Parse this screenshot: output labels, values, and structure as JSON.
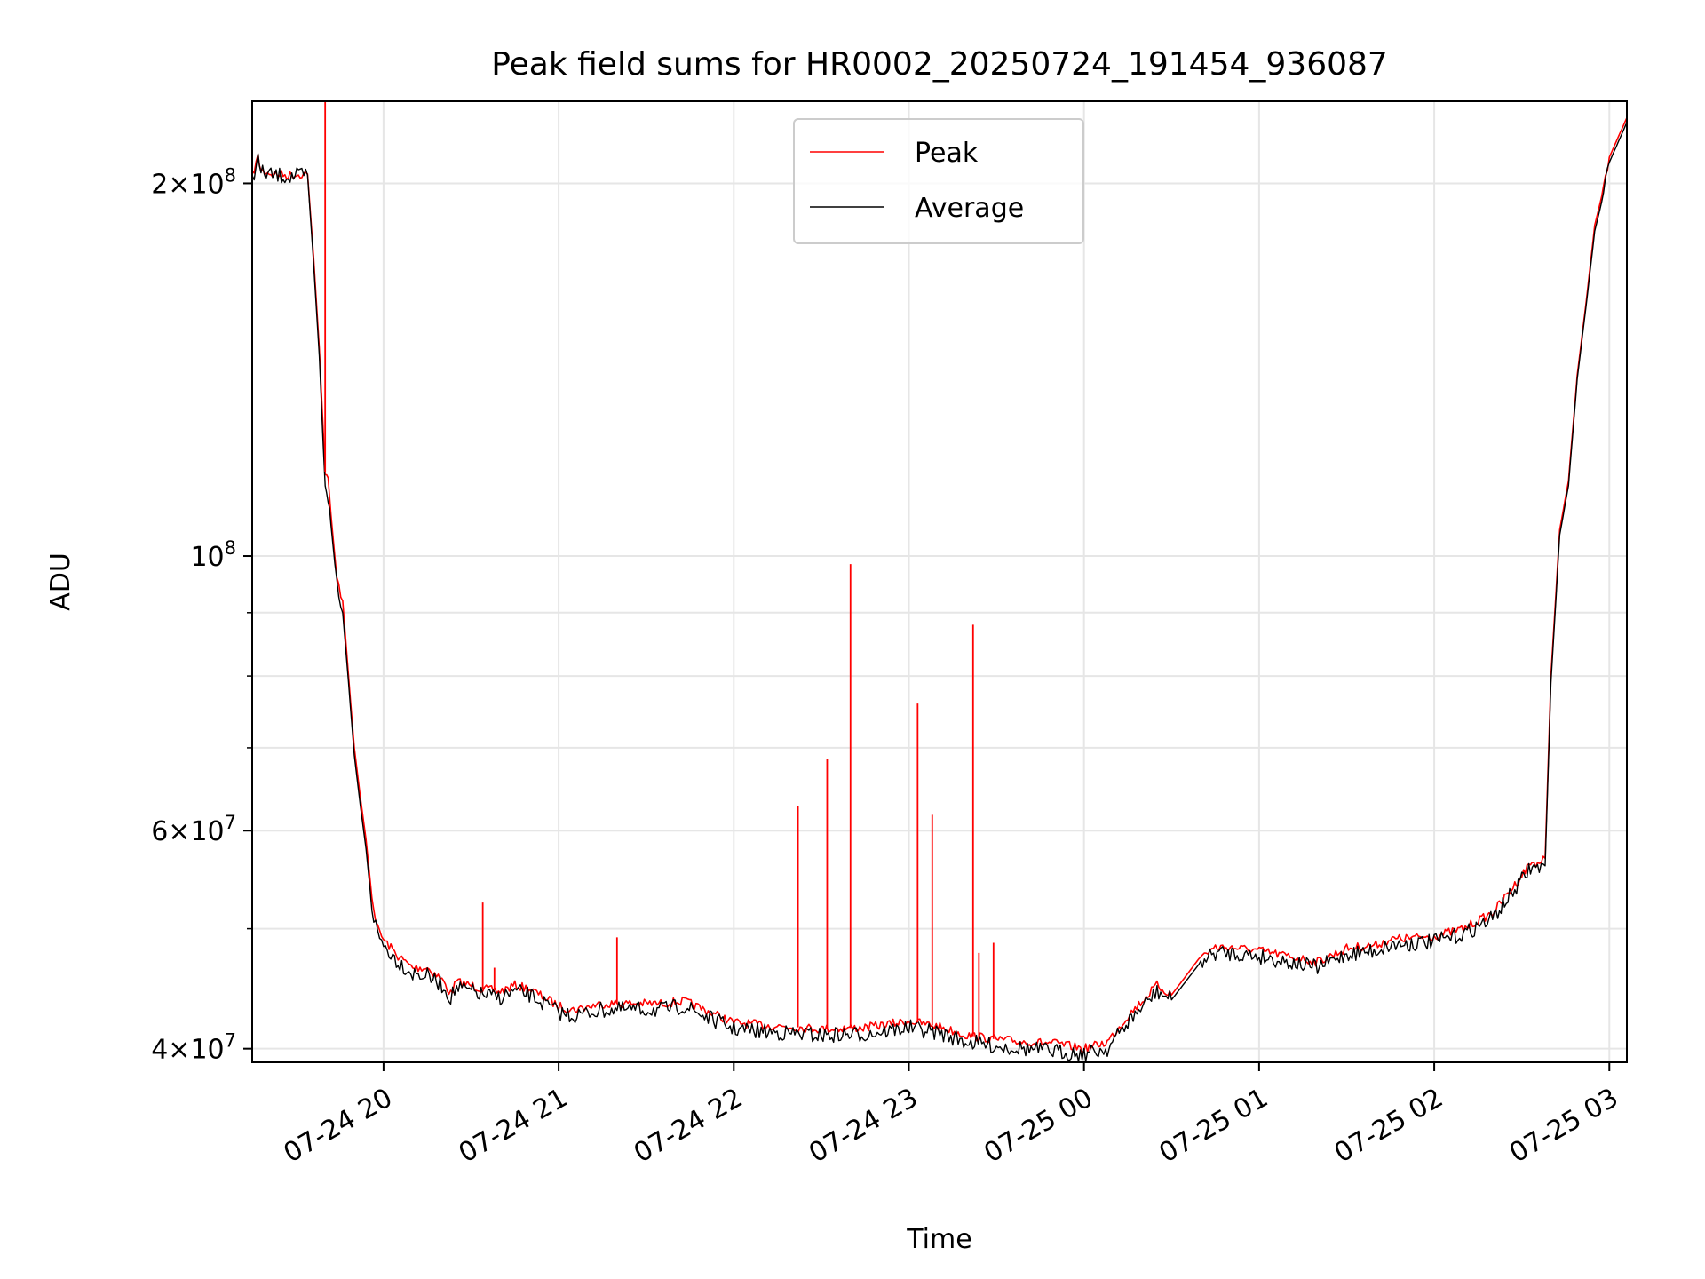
{
  "chart_data": {
    "type": "line",
    "title": "Peak field sums for HR0002_20250724_191454_936087",
    "xlabel": "Time",
    "ylabel": "ADU",
    "yscale": "log",
    "grid": true,
    "legend_placement": "top-center",
    "x_ticks": [
      {
        "value": "2025-07-24T20:00",
        "label": "07-24 20"
      },
      {
        "value": "2025-07-24T21:00",
        "label": "07-24 21"
      },
      {
        "value": "2025-07-24T22:00",
        "label": "07-24 22"
      },
      {
        "value": "2025-07-24T23:00",
        "label": "07-24 23"
      },
      {
        "value": "2025-07-25T00:00",
        "label": "07-25 00"
      },
      {
        "value": "2025-07-25T01:00",
        "label": "07-25 01"
      },
      {
        "value": "2025-07-25T02:00",
        "label": "07-25 02"
      },
      {
        "value": "2025-07-25T03:00",
        "label": "07-25 03"
      }
    ],
    "y_ticks": [
      {
        "value": 40000000,
        "base": "4",
        "exp": "7"
      },
      {
        "value": 60000000,
        "base": "6",
        "exp": "7"
      },
      {
        "value": 100000000,
        "base": "",
        "exp": "8"
      },
      {
        "value": 200000000,
        "base": "2",
        "exp": "8"
      }
    ],
    "xlim": [
      "2025-07-24T19:15",
      "2025-07-25T03:06"
    ],
    "ylim": [
      39000000,
      233000000
    ],
    "series": [
      {
        "name": "Peak",
        "color": "#ff0000",
        "x": [
          "2025-07-24T19:15",
          "2025-07-24T19:17",
          "2025-07-24T19:18",
          "2025-07-24T19:22",
          "2025-07-24T19:28",
          "2025-07-24T19:32",
          "2025-07-24T19:34",
          "2025-07-24T19:36",
          "2025-07-24T19:38",
          "2025-07-24T19:40",
          "2025-07-24T19:41",
          "2025-07-24T19:42",
          "2025-07-24T19:44",
          "2025-07-24T19:46",
          "2025-07-24T19:48",
          "2025-07-24T19:50",
          "2025-07-24T19:52",
          "2025-07-24T19:54",
          "2025-07-24T19:56",
          "2025-07-24T19:58",
          "2025-07-24T20:00",
          "2025-07-24T20:05",
          "2025-07-24T20:10",
          "2025-07-24T20:15",
          "2025-07-24T20:20",
          "2025-07-24T20:23",
          "2025-07-24T20:25",
          "2025-07-24T20:30",
          "2025-07-24T20:34",
          "2025-07-24T20:40",
          "2025-07-24T20:45",
          "2025-07-24T20:50",
          "2025-07-24T20:55",
          "2025-07-24T21:00",
          "2025-07-24T21:05",
          "2025-07-24T21:15",
          "2025-07-24T21:25",
          "2025-07-24T21:35",
          "2025-07-24T21:43",
          "2025-07-24T21:50",
          "2025-07-24T22:00",
          "2025-07-24T22:10",
          "2025-07-24T22:30",
          "2025-07-24T22:45",
          "2025-07-24T23:00",
          "2025-07-24T23:10",
          "2025-07-24T23:20",
          "2025-07-24T23:30",
          "2025-07-24T23:40",
          "2025-07-24T23:50",
          "2025-07-25T00:00",
          "2025-07-25T00:08",
          "2025-07-25T00:15",
          "2025-07-25T00:25",
          "2025-07-25T00:30",
          "2025-07-25T00:40",
          "2025-07-25T00:45",
          "2025-07-25T00:50",
          "2025-07-25T01:00",
          "2025-07-25T01:10",
          "2025-07-25T01:20",
          "2025-07-25T01:30",
          "2025-07-25T01:40",
          "2025-07-25T01:45",
          "2025-07-25T02:00",
          "2025-07-25T02:10",
          "2025-07-25T02:20",
          "2025-07-25T02:27",
          "2025-07-25T02:33",
          "2025-07-25T02:36",
          "2025-07-25T02:38",
          "2025-07-25T02:40",
          "2025-07-25T02:43",
          "2025-07-25T02:46",
          "2025-07-25T02:49",
          "2025-07-25T02:52",
          "2025-07-25T02:55",
          "2025-07-25T02:58",
          "2025-07-25T03:00",
          "2025-07-25T03:06"
        ],
        "values": [
          203000000,
          210000000,
          205000000,
          203500000,
          203000000,
          203500000,
          203500000,
          175000000,
          147000000,
          117000000,
          115000000,
          108000000,
          96000000,
          92000000,
          80000000,
          70000000,
          64000000,
          59000000,
          53000000,
          50000000,
          49000000,
          47500000,
          46500000,
          46500000,
          45500000,
          44300000,
          45300000,
          45000000,
          44700000,
          44500000,
          45000000,
          44700000,
          44000000,
          43300000,
          43000000,
          43500000,
          43500000,
          43500000,
          43700000,
          43000000,
          42000000,
          41800000,
          41500000,
          41600000,
          42100000,
          41700000,
          41000000,
          40700000,
          40500000,
          40400000,
          40000000,
          40500000,
          42500000,
          45000000,
          44200000,
          47500000,
          48300000,
          48300000,
          48000000,
          47500000,
          47000000,
          48200000,
          48500000,
          49000000,
          49300000,
          50000000,
          51500000,
          54000000,
          56500000,
          56500000,
          57000000,
          80000000,
          105000000,
          115000000,
          140000000,
          160000000,
          185000000,
          198000000,
          210000000,
          226000000
        ],
        "spikes": [
          {
            "x": "2025-07-24T19:40",
            "value": 233000000
          },
          {
            "x": "2025-07-24T20:34",
            "value": 52500000
          },
          {
            "x": "2025-07-24T20:38",
            "value": 46500000
          },
          {
            "x": "2025-07-24T21:20",
            "value": 49200000
          },
          {
            "x": "2025-07-24T22:22",
            "value": 62800000
          },
          {
            "x": "2025-07-24T22:32",
            "value": 68500000
          },
          {
            "x": "2025-07-24T22:40",
            "value": 98500000
          },
          {
            "x": "2025-07-24T23:03",
            "value": 76000000
          },
          {
            "x": "2025-07-24T23:08",
            "value": 61800000
          },
          {
            "x": "2025-07-24T23:22",
            "value": 88000000
          },
          {
            "x": "2025-07-24T23:24",
            "value": 47800000
          },
          {
            "x": "2025-07-24T23:29",
            "value": 48700000
          }
        ]
      },
      {
        "name": "Average",
        "color": "#000000",
        "x": [
          "2025-07-24T19:15",
          "2025-07-24T19:17",
          "2025-07-24T19:18",
          "2025-07-24T19:22",
          "2025-07-24T19:28",
          "2025-07-24T19:32",
          "2025-07-24T19:34",
          "2025-07-24T19:36",
          "2025-07-24T19:38",
          "2025-07-24T19:40",
          "2025-07-24T19:41",
          "2025-07-24T19:42",
          "2025-07-24T19:44",
          "2025-07-24T19:46",
          "2025-07-24T19:48",
          "2025-07-24T19:50",
          "2025-07-24T19:52",
          "2025-07-24T19:54",
          "2025-07-24T19:56",
          "2025-07-24T19:58",
          "2025-07-24T20:00",
          "2025-07-24T20:05",
          "2025-07-24T20:10",
          "2025-07-24T20:15",
          "2025-07-24T20:20",
          "2025-07-24T20:23",
          "2025-07-24T20:25",
          "2025-07-24T20:30",
          "2025-07-24T20:34",
          "2025-07-24T20:40",
          "2025-07-24T20:45",
          "2025-07-24T20:50",
          "2025-07-24T20:55",
          "2025-07-24T21:00",
          "2025-07-24T21:05",
          "2025-07-24T21:15",
          "2025-07-24T21:25",
          "2025-07-24T21:35",
          "2025-07-24T21:43",
          "2025-07-24T21:50",
          "2025-07-24T22:00",
          "2025-07-24T22:10",
          "2025-07-24T22:30",
          "2025-07-24T22:45",
          "2025-07-24T23:00",
          "2025-07-24T23:10",
          "2025-07-24T23:20",
          "2025-07-24T23:30",
          "2025-07-24T23:40",
          "2025-07-24T23:50",
          "2025-07-25T00:00",
          "2025-07-25T00:08",
          "2025-07-25T00:15",
          "2025-07-25T00:25",
          "2025-07-25T00:30",
          "2025-07-25T00:40",
          "2025-07-25T00:45",
          "2025-07-25T00:50",
          "2025-07-25T01:00",
          "2025-07-25T01:10",
          "2025-07-25T01:20",
          "2025-07-25T01:30",
          "2025-07-25T01:40",
          "2025-07-25T01:45",
          "2025-07-25T02:00",
          "2025-07-25T02:10",
          "2025-07-25T02:20",
          "2025-07-25T02:27",
          "2025-07-25T02:33",
          "2025-07-25T02:36",
          "2025-07-25T02:38",
          "2025-07-25T02:40",
          "2025-07-25T02:43",
          "2025-07-25T02:46",
          "2025-07-25T02:49",
          "2025-07-25T02:52",
          "2025-07-25T02:55",
          "2025-07-25T02:58",
          "2025-07-25T03:00",
          "2025-07-25T03:06"
        ],
        "values": [
          202000000,
          209000000,
          204000000,
          203000000,
          202500000,
          203000000,
          203000000,
          173000000,
          145000000,
          113000000,
          111000000,
          106000000,
          95000000,
          90000000,
          79000000,
          69000000,
          63000000,
          58000000,
          52000000,
          49500000,
          48500000,
          47000000,
          46000000,
          45800000,
          45000000,
          44000000,
          44800000,
          44500000,
          44200000,
          44000000,
          44500000,
          44200000,
          43500000,
          42800000,
          42500000,
          43000000,
          43000000,
          43000000,
          43300000,
          42500000,
          41500000,
          41300000,
          41000000,
          41100000,
          41600000,
          41200000,
          40500000,
          40200000,
          40000000,
          39800000,
          39600000,
          40000000,
          42000000,
          44500000,
          43800000,
          47000000,
          47800000,
          47800000,
          47500000,
          47000000,
          46500000,
          47700000,
          48000000,
          48500000,
          48800000,
          49500000,
          51000000,
          53500000,
          56000000,
          56000000,
          56200000,
          79000000,
          104000000,
          114000000,
          139000000,
          159000000,
          183000000,
          196000000,
          208000000,
          224000000
        ]
      }
    ]
  }
}
